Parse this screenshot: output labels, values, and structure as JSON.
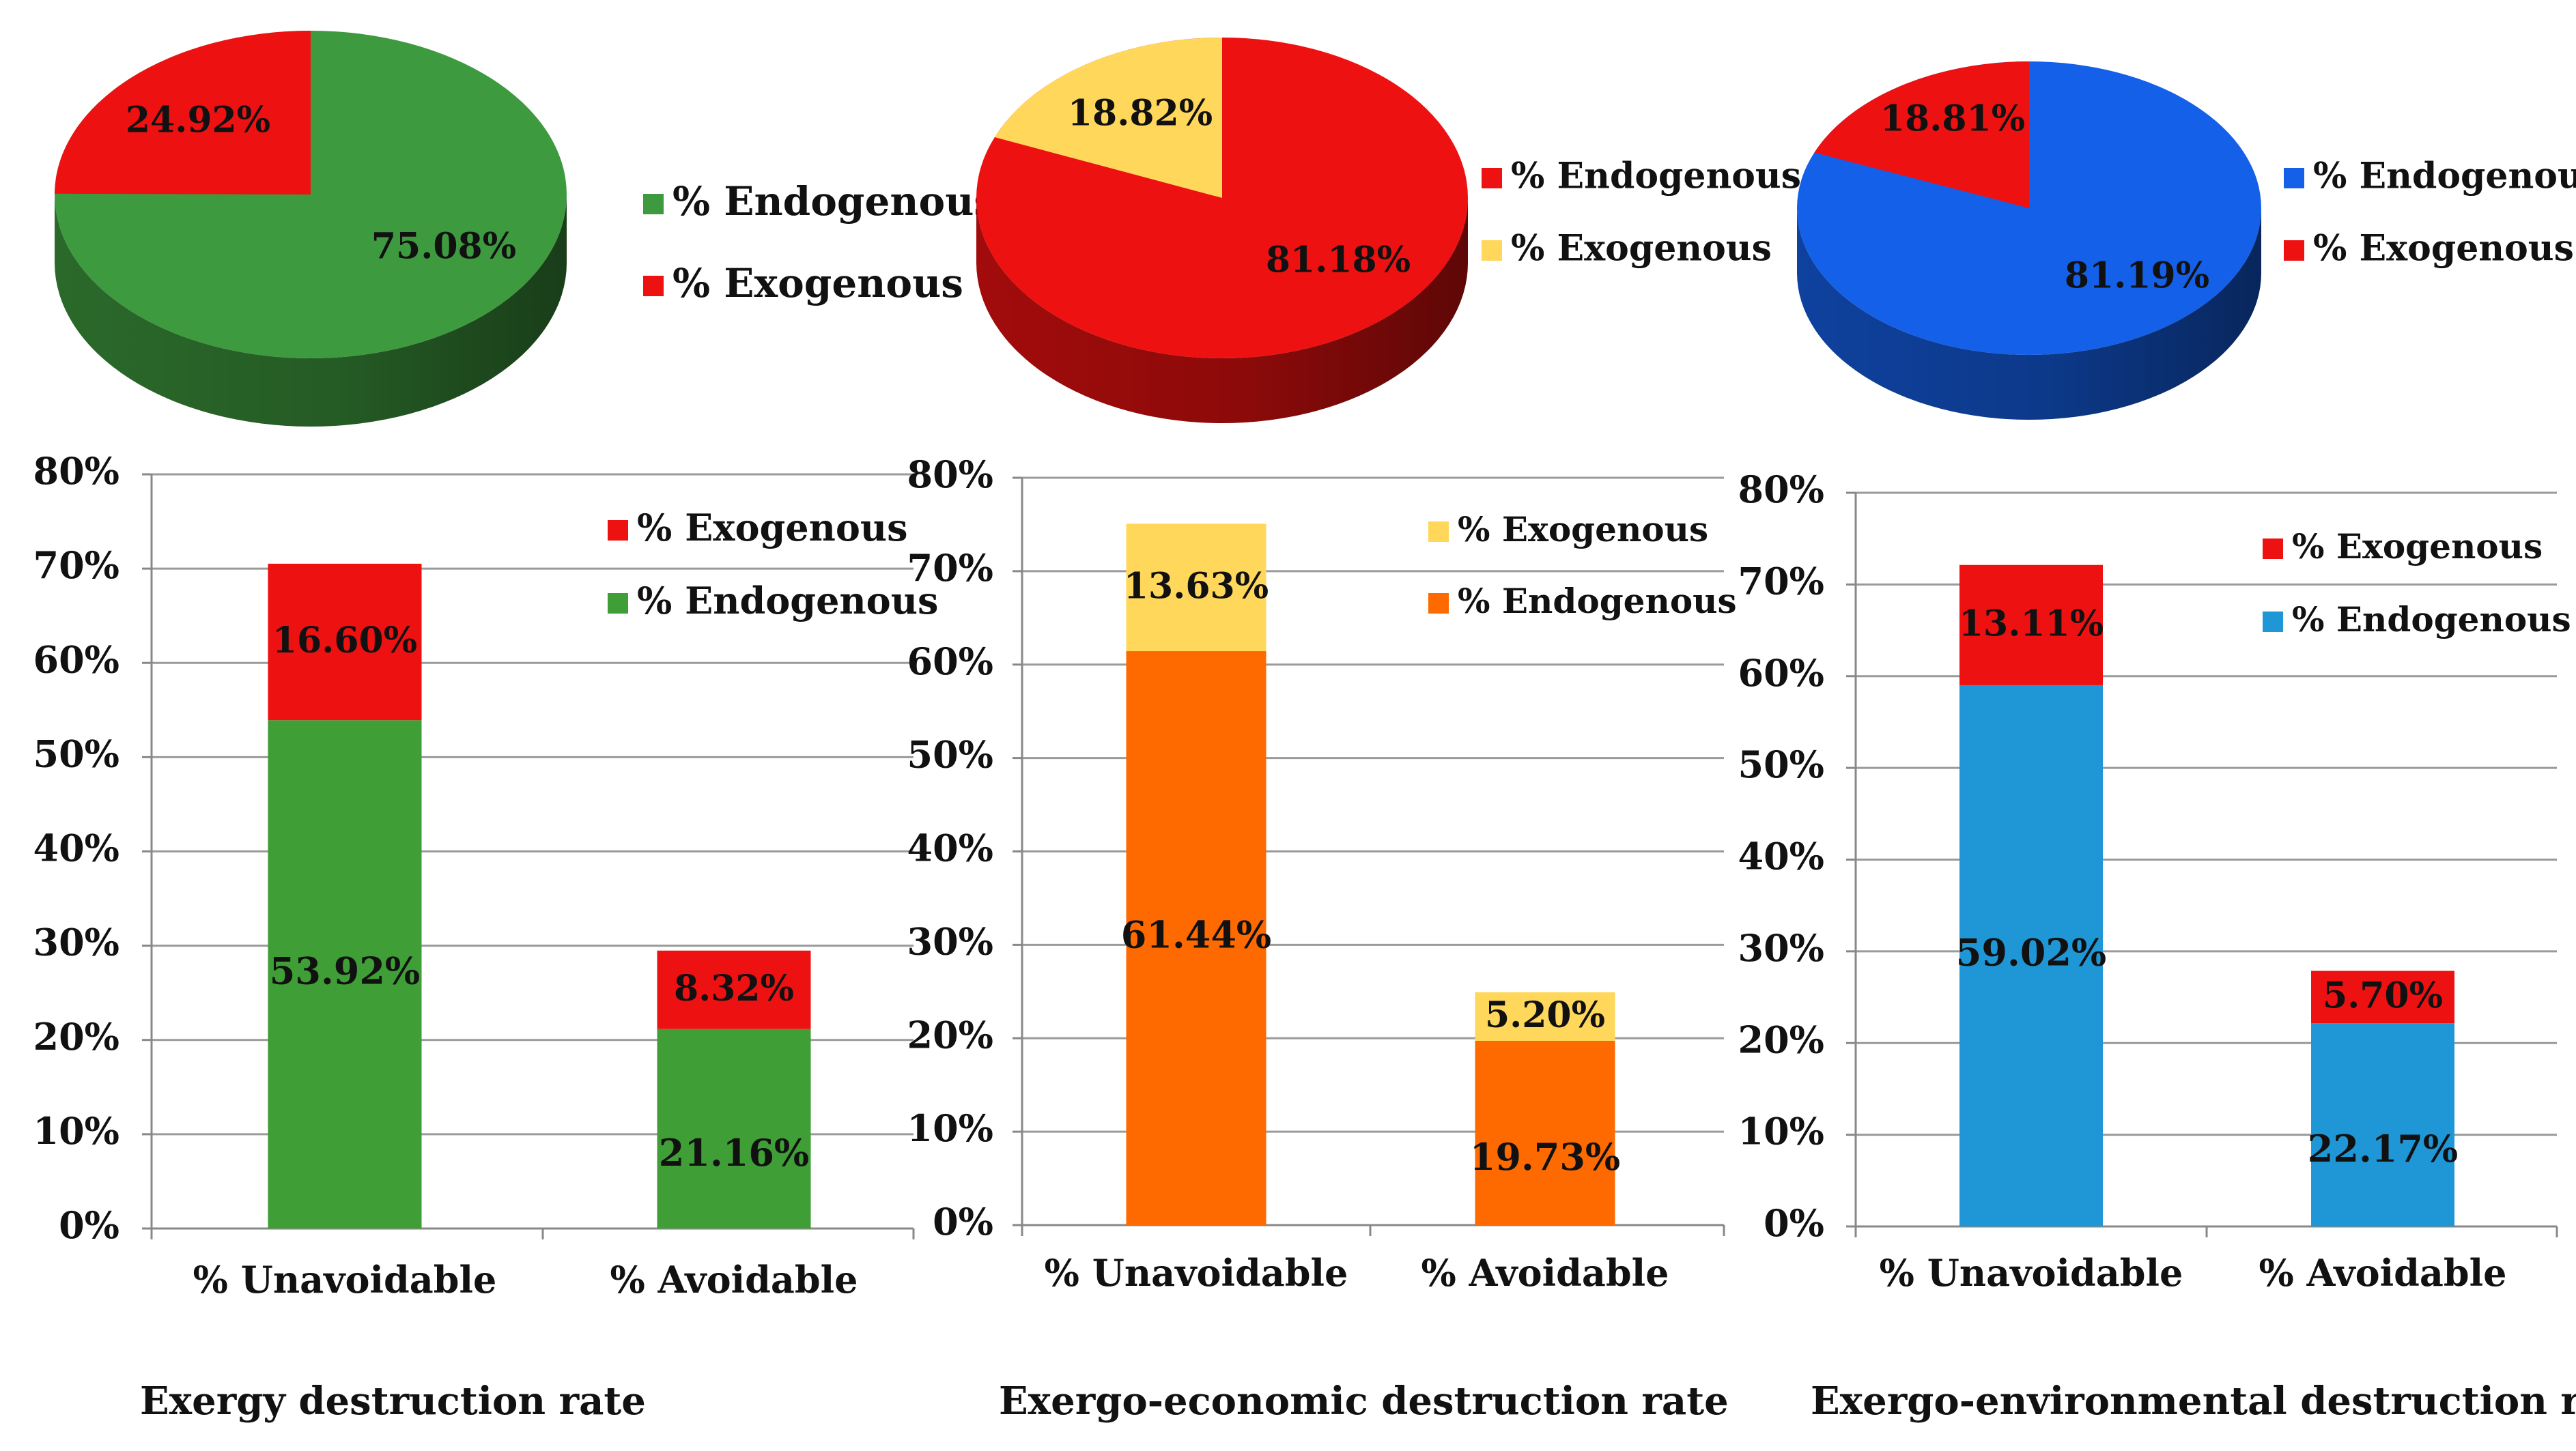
{
  "panels": [
    {
      "caption": "Exergy destruction rate",
      "colors": {
        "endogenous_pie": "#3e9a3e",
        "endogenous_bar": "#3f9e36",
        "exogenous": "#ee1111"
      },
      "pie": {
        "type": "pie",
        "slices": [
          {
            "label": "% Endogenous",
            "value": 75.08,
            "value_label": "75.08%"
          },
          {
            "label": "% Exogenous",
            "value": 24.92,
            "value_label": "24.92%"
          }
        ],
        "legend": [
          {
            "label": "% Endogenous",
            "color": "#3e9a3e"
          },
          {
            "label": "% Exogenous",
            "color": "#ee1111"
          }
        ]
      },
      "bar": {
        "type": "bar",
        "stacked": true,
        "categories": [
          "% Unavoidable",
          "% Avoidable"
        ],
        "series": [
          {
            "name": "% Endogenous",
            "values": [
              53.92,
              21.16
            ],
            "labels": [
              "53.92%",
              "21.16%"
            ]
          },
          {
            "name": "% Exogenous",
            "values": [
              16.6,
              8.32
            ],
            "labels": [
              "16.60%",
              "8.32%"
            ]
          }
        ],
        "ylim": [
          0,
          80
        ],
        "yticks": [
          "0%",
          "10%",
          "20%",
          "30%",
          "40%",
          "50%",
          "60%",
          "70%",
          "80%"
        ],
        "legend": [
          {
            "label": "% Exogenous",
            "color": "#ee1111"
          },
          {
            "label": "% Endogenous",
            "color": "#3f9e36"
          }
        ]
      }
    },
    {
      "caption": "Exergo-economic destruction rate",
      "colors": {
        "endogenous_pie": "#ee1111",
        "endogenous_bar": "#ff6a00",
        "exogenous": "#ffd75a"
      },
      "pie": {
        "type": "pie",
        "slices": [
          {
            "label": "% Endogenous",
            "value": 81.18,
            "value_label": "81.18%"
          },
          {
            "label": "% Exogenous",
            "value": 18.82,
            "value_label": "18.82%"
          }
        ],
        "legend": [
          {
            "label": "% Endogenous",
            "color": "#ee1111"
          },
          {
            "label": "% Exogenous",
            "color": "#ffd75a"
          }
        ]
      },
      "bar": {
        "type": "bar",
        "stacked": true,
        "categories": [
          "% Unavoidable",
          "% Avoidable"
        ],
        "series": [
          {
            "name": "% Endogenous",
            "values": [
              61.44,
              19.73
            ],
            "labels": [
              "61.44%",
              "19.73%"
            ]
          },
          {
            "name": "% Exogenous",
            "values": [
              13.63,
              5.2
            ],
            "labels": [
              "13.63%",
              "5.20%"
            ]
          }
        ],
        "ylim": [
          0,
          80
        ],
        "yticks": [
          "0%",
          "10%",
          "20%",
          "30%",
          "40%",
          "50%",
          "60%",
          "70%",
          "80%"
        ],
        "legend": [
          {
            "label": "% Exogenous",
            "color": "#ffd75a"
          },
          {
            "label": "% Endogenous",
            "color": "#ff6a00"
          }
        ]
      }
    },
    {
      "caption": "Exergo-environmental destruction rate",
      "colors": {
        "endogenous_pie": "#1560e8",
        "endogenous_bar": "#1f97d6",
        "exogenous": "#ee1111"
      },
      "pie": {
        "type": "pie",
        "slices": [
          {
            "label": "% Endogenous",
            "value": 81.19,
            "value_label": "81.19%"
          },
          {
            "label": "% Exogenous",
            "value": 18.81,
            "value_label": "18.81%"
          }
        ],
        "legend": [
          {
            "label": "% Endogenous",
            "color": "#1560e8"
          },
          {
            "label": "% Exogenous",
            "color": "#ee1111"
          }
        ]
      },
      "bar": {
        "type": "bar",
        "stacked": true,
        "categories": [
          "% Unavoidable",
          "% Avoidable"
        ],
        "series": [
          {
            "name": "% Endogenous",
            "values": [
              59.02,
              22.17
            ],
            "labels": [
              "59.02%",
              "22.17%"
            ]
          },
          {
            "name": "% Exogenous",
            "values": [
              13.11,
              5.7
            ],
            "labels": [
              "13.11%",
              "5.70%"
            ]
          }
        ],
        "ylim": [
          0,
          80
        ],
        "yticks": [
          "0%",
          "10%",
          "20%",
          "30%",
          "40%",
          "50%",
          "60%",
          "70%",
          "80%"
        ],
        "legend": [
          {
            "label": "% Exogenous",
            "color": "#ee1111"
          },
          {
            "label": "% Endogenous",
            "color": "#1f97d6"
          }
        ]
      }
    }
  ],
  "chart_data": [
    {
      "type": "pie",
      "title": "Exergy destruction rate",
      "labels": [
        "% Endogenous",
        "% Exogenous"
      ],
      "values": [
        75.08,
        24.92
      ]
    },
    {
      "type": "bar",
      "title": "Exergy destruction rate",
      "categories": [
        "% Unavoidable",
        "% Avoidable"
      ],
      "series": [
        {
          "name": "% Endogenous",
          "values": [
            53.92,
            21.16
          ]
        },
        {
          "name": "% Exogenous",
          "values": [
            16.6,
            8.32
          ]
        }
      ],
      "ylim": [
        0,
        80
      ],
      "ylabel": "",
      "xlabel": ""
    },
    {
      "type": "pie",
      "title": "Exergo-economic destruction rate",
      "labels": [
        "% Endogenous",
        "% Exogenous"
      ],
      "values": [
        81.18,
        18.82
      ]
    },
    {
      "type": "bar",
      "title": "Exergo-economic destruction rate",
      "categories": [
        "% Unavoidable",
        "% Avoidable"
      ],
      "series": [
        {
          "name": "% Endogenous",
          "values": [
            61.44,
            19.73
          ]
        },
        {
          "name": "% Exogenous",
          "values": [
            13.63,
            5.2
          ]
        }
      ],
      "ylim": [
        0,
        80
      ],
      "ylabel": "",
      "xlabel": ""
    },
    {
      "type": "pie",
      "title": "Exergo-environmental destruction rate",
      "labels": [
        "% Endogenous",
        "% Exogenous"
      ],
      "values": [
        81.19,
        18.81
      ]
    },
    {
      "type": "bar",
      "title": "Exergo-environmental destruction rate",
      "categories": [
        "% Unavoidable",
        "% Avoidable"
      ],
      "series": [
        {
          "name": "% Endogenous",
          "values": [
            59.02,
            22.17
          ]
        },
        {
          "name": "% Exogenous",
          "values": [
            13.11,
            5.7
          ]
        }
      ],
      "ylim": [
        0,
        80
      ],
      "ylabel": "",
      "xlabel": ""
    }
  ]
}
